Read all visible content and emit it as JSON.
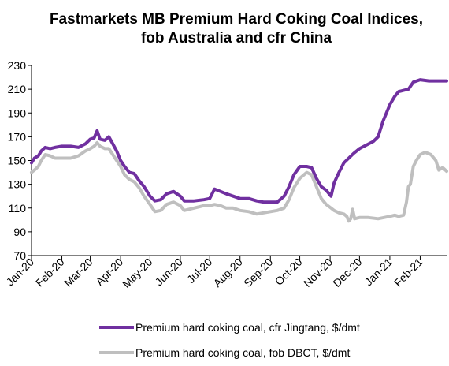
{
  "chart_data": {
    "type": "line",
    "title_lines": [
      "Fastmarkets MB Premium Hard Coking Coal Indices,",
      "fob Australia and cfr China"
    ],
    "xlabel": "",
    "ylabel": "",
    "x_tick_labels": [
      "Jan-20",
      "Feb-20",
      "Mar-20",
      "Apr-20",
      "May-20",
      "Jun-20",
      "Jul-20",
      "Aug-20",
      "Sep-20",
      "Oct-20",
      "Nov-20",
      "Dec-20",
      "Jan-21",
      "Feb-21"
    ],
    "x_range": [
      "2020-01-01",
      "2021-02-28"
    ],
    "ylim": [
      70,
      230
    ],
    "y_ticks": [
      70,
      90,
      110,
      130,
      150,
      170,
      190,
      210,
      230
    ],
    "grid": false,
    "legend_position": "bottom",
    "series": [
      {
        "name": "Premium hard coking coal, cfr Jingtang, $/dmt",
        "color": "#7030a0",
        "points": [
          [
            "2020-01-01",
            148
          ],
          [
            "2020-01-04",
            152
          ],
          [
            "2020-01-08",
            154
          ],
          [
            "2020-01-11",
            158
          ],
          [
            "2020-01-15",
            161
          ],
          [
            "2020-01-20",
            160
          ],
          [
            "2020-01-25",
            161
          ],
          [
            "2020-02-01",
            162
          ],
          [
            "2020-02-10",
            162
          ],
          [
            "2020-02-18",
            161
          ],
          [
            "2020-02-25",
            164
          ],
          [
            "2020-03-01",
            168
          ],
          [
            "2020-03-05",
            169
          ],
          [
            "2020-03-08",
            175
          ],
          [
            "2020-03-11",
            168
          ],
          [
            "2020-03-16",
            167
          ],
          [
            "2020-03-20",
            170
          ],
          [
            "2020-03-24",
            164
          ],
          [
            "2020-03-28",
            158
          ],
          [
            "2020-04-01",
            150
          ],
          [
            "2020-04-05",
            145
          ],
          [
            "2020-04-10",
            140
          ],
          [
            "2020-04-15",
            139
          ],
          [
            "2020-04-20",
            133
          ],
          [
            "2020-04-25",
            128
          ],
          [
            "2020-05-01",
            120
          ],
          [
            "2020-05-06",
            116
          ],
          [
            "2020-05-12",
            117
          ],
          [
            "2020-05-18",
            122
          ],
          [
            "2020-05-25",
            124
          ],
          [
            "2020-06-01",
            120
          ],
          [
            "2020-06-05",
            116
          ],
          [
            "2020-06-15",
            116
          ],
          [
            "2020-06-25",
            117
          ],
          [
            "2020-07-01",
            118
          ],
          [
            "2020-07-06",
            126
          ],
          [
            "2020-07-12",
            124
          ],
          [
            "2020-07-18",
            122
          ],
          [
            "2020-07-25",
            120
          ],
          [
            "2020-08-01",
            118
          ],
          [
            "2020-08-10",
            118
          ],
          [
            "2020-08-18",
            116
          ],
          [
            "2020-08-25",
            115
          ],
          [
            "2020-09-01",
            115
          ],
          [
            "2020-09-08",
            115
          ],
          [
            "2020-09-15",
            120
          ],
          [
            "2020-09-20",
            128
          ],
          [
            "2020-09-25",
            138
          ],
          [
            "2020-10-01",
            145
          ],
          [
            "2020-10-08",
            145
          ],
          [
            "2020-10-13",
            144
          ],
          [
            "2020-10-18",
            135
          ],
          [
            "2020-10-23",
            128
          ],
          [
            "2020-10-28",
            125
          ],
          [
            "2020-11-02",
            120
          ],
          [
            "2020-11-05",
            131
          ],
          [
            "2020-11-10",
            140
          ],
          [
            "2020-11-15",
            148
          ],
          [
            "2020-11-20",
            152
          ],
          [
            "2020-11-25",
            156
          ],
          [
            "2020-12-01",
            160
          ],
          [
            "2020-12-08",
            163
          ],
          [
            "2020-12-15",
            166
          ],
          [
            "2020-12-20",
            170
          ],
          [
            "2020-12-25",
            183
          ],
          [
            "2021-01-01",
            197
          ],
          [
            "2021-01-06",
            204
          ],
          [
            "2021-01-10",
            208
          ],
          [
            "2021-01-15",
            209
          ],
          [
            "2021-01-20",
            210
          ],
          [
            "2021-01-25",
            216
          ],
          [
            "2021-02-01",
            218
          ],
          [
            "2021-02-10",
            217
          ],
          [
            "2021-02-20",
            217
          ],
          [
            "2021-02-28",
            217
          ]
        ]
      },
      {
        "name": "Premium hard coking coal, fob DBCT, $/dmt",
        "color": "#bfbfbf",
        "points": [
          [
            "2020-01-01",
            140
          ],
          [
            "2020-01-04",
            142
          ],
          [
            "2020-01-08",
            145
          ],
          [
            "2020-01-11",
            150
          ],
          [
            "2020-01-15",
            155
          ],
          [
            "2020-01-20",
            154
          ],
          [
            "2020-01-25",
            152
          ],
          [
            "2020-02-01",
            152
          ],
          [
            "2020-02-10",
            152
          ],
          [
            "2020-02-18",
            154
          ],
          [
            "2020-02-25",
            158
          ],
          [
            "2020-03-01",
            160
          ],
          [
            "2020-03-05",
            162
          ],
          [
            "2020-03-08",
            165
          ],
          [
            "2020-03-11",
            162
          ],
          [
            "2020-03-16",
            160
          ],
          [
            "2020-03-20",
            160
          ],
          [
            "2020-03-24",
            155
          ],
          [
            "2020-03-28",
            150
          ],
          [
            "2020-04-01",
            145
          ],
          [
            "2020-04-05",
            138
          ],
          [
            "2020-04-10",
            134
          ],
          [
            "2020-04-15",
            132
          ],
          [
            "2020-04-20",
            127
          ],
          [
            "2020-04-25",
            120
          ],
          [
            "2020-05-01",
            113
          ],
          [
            "2020-05-06",
            107
          ],
          [
            "2020-05-12",
            108
          ],
          [
            "2020-05-18",
            113
          ],
          [
            "2020-05-25",
            115
          ],
          [
            "2020-06-01",
            112
          ],
          [
            "2020-06-05",
            108
          ],
          [
            "2020-06-15",
            110
          ],
          [
            "2020-06-25",
            112
          ],
          [
            "2020-07-01",
            112
          ],
          [
            "2020-07-06",
            113
          ],
          [
            "2020-07-12",
            112
          ],
          [
            "2020-07-18",
            110
          ],
          [
            "2020-07-25",
            110
          ],
          [
            "2020-08-01",
            108
          ],
          [
            "2020-08-10",
            107
          ],
          [
            "2020-08-18",
            105
          ],
          [
            "2020-08-25",
            106
          ],
          [
            "2020-09-01",
            107
          ],
          [
            "2020-09-08",
            108
          ],
          [
            "2020-09-15",
            110
          ],
          [
            "2020-09-20",
            117
          ],
          [
            "2020-09-25",
            127
          ],
          [
            "2020-10-01",
            135
          ],
          [
            "2020-10-08",
            140
          ],
          [
            "2020-10-13",
            138
          ],
          [
            "2020-10-18",
            128
          ],
          [
            "2020-10-23",
            118
          ],
          [
            "2020-10-28",
            113
          ],
          [
            "2020-11-02",
            110
          ],
          [
            "2020-11-05",
            108
          ],
          [
            "2020-11-10",
            106
          ],
          [
            "2020-11-15",
            105
          ],
          [
            "2020-11-18",
            103
          ],
          [
            "2020-11-20",
            99
          ],
          [
            "2020-11-22",
            101
          ],
          [
            "2020-11-24",
            109
          ],
          [
            "2020-11-26",
            101
          ],
          [
            "2020-12-01",
            102
          ],
          [
            "2020-12-10",
            102
          ],
          [
            "2020-12-20",
            101
          ],
          [
            "2021-01-01",
            103
          ],
          [
            "2021-01-06",
            104
          ],
          [
            "2021-01-10",
            103
          ],
          [
            "2021-01-15",
            104
          ],
          [
            "2021-01-18",
            115
          ],
          [
            "2021-01-20",
            128
          ],
          [
            "2021-01-22",
            130
          ],
          [
            "2021-01-25",
            145
          ],
          [
            "2021-01-28",
            150
          ],
          [
            "2021-02-01",
            155
          ],
          [
            "2021-02-06",
            157
          ],
          [
            "2021-02-12",
            155
          ],
          [
            "2021-02-17",
            150
          ],
          [
            "2021-02-20",
            142
          ],
          [
            "2021-02-24",
            144
          ],
          [
            "2021-02-28",
            141
          ]
        ]
      }
    ]
  }
}
